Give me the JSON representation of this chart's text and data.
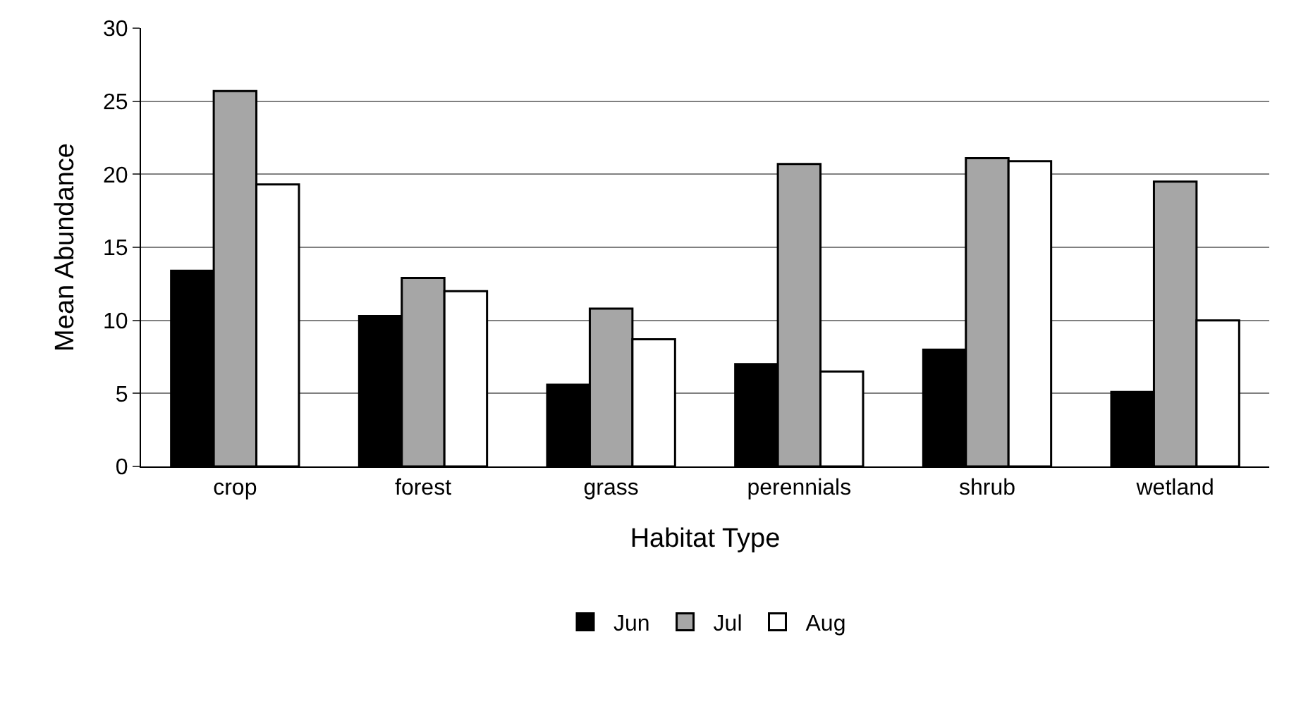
{
  "chart_data": {
    "type": "bar",
    "xlabel": "Habitat Type",
    "ylabel": "Mean Abundance",
    "categories": [
      "crop",
      "forest",
      "grass",
      "perennials",
      "shrub",
      "wetland"
    ],
    "series": [
      {
        "name": "Jun",
        "color": "#000000",
        "values": [
          13.4,
          10.3,
          5.6,
          7.0,
          8.0,
          5.1
        ]
      },
      {
        "name": "Jul",
        "color": "#a6a6a6",
        "values": [
          25.7,
          12.9,
          10.8,
          20.7,
          21.1,
          19.5
        ]
      },
      {
        "name": "Aug",
        "color": "#ffffff",
        "values": [
          19.3,
          12.0,
          8.7,
          6.5,
          20.9,
          10.0
        ]
      }
    ],
    "ylim": [
      0,
      30
    ],
    "yticks": [
      0,
      5,
      10,
      15,
      20,
      25,
      30
    ],
    "grid": "y",
    "legend": "bottom"
  }
}
